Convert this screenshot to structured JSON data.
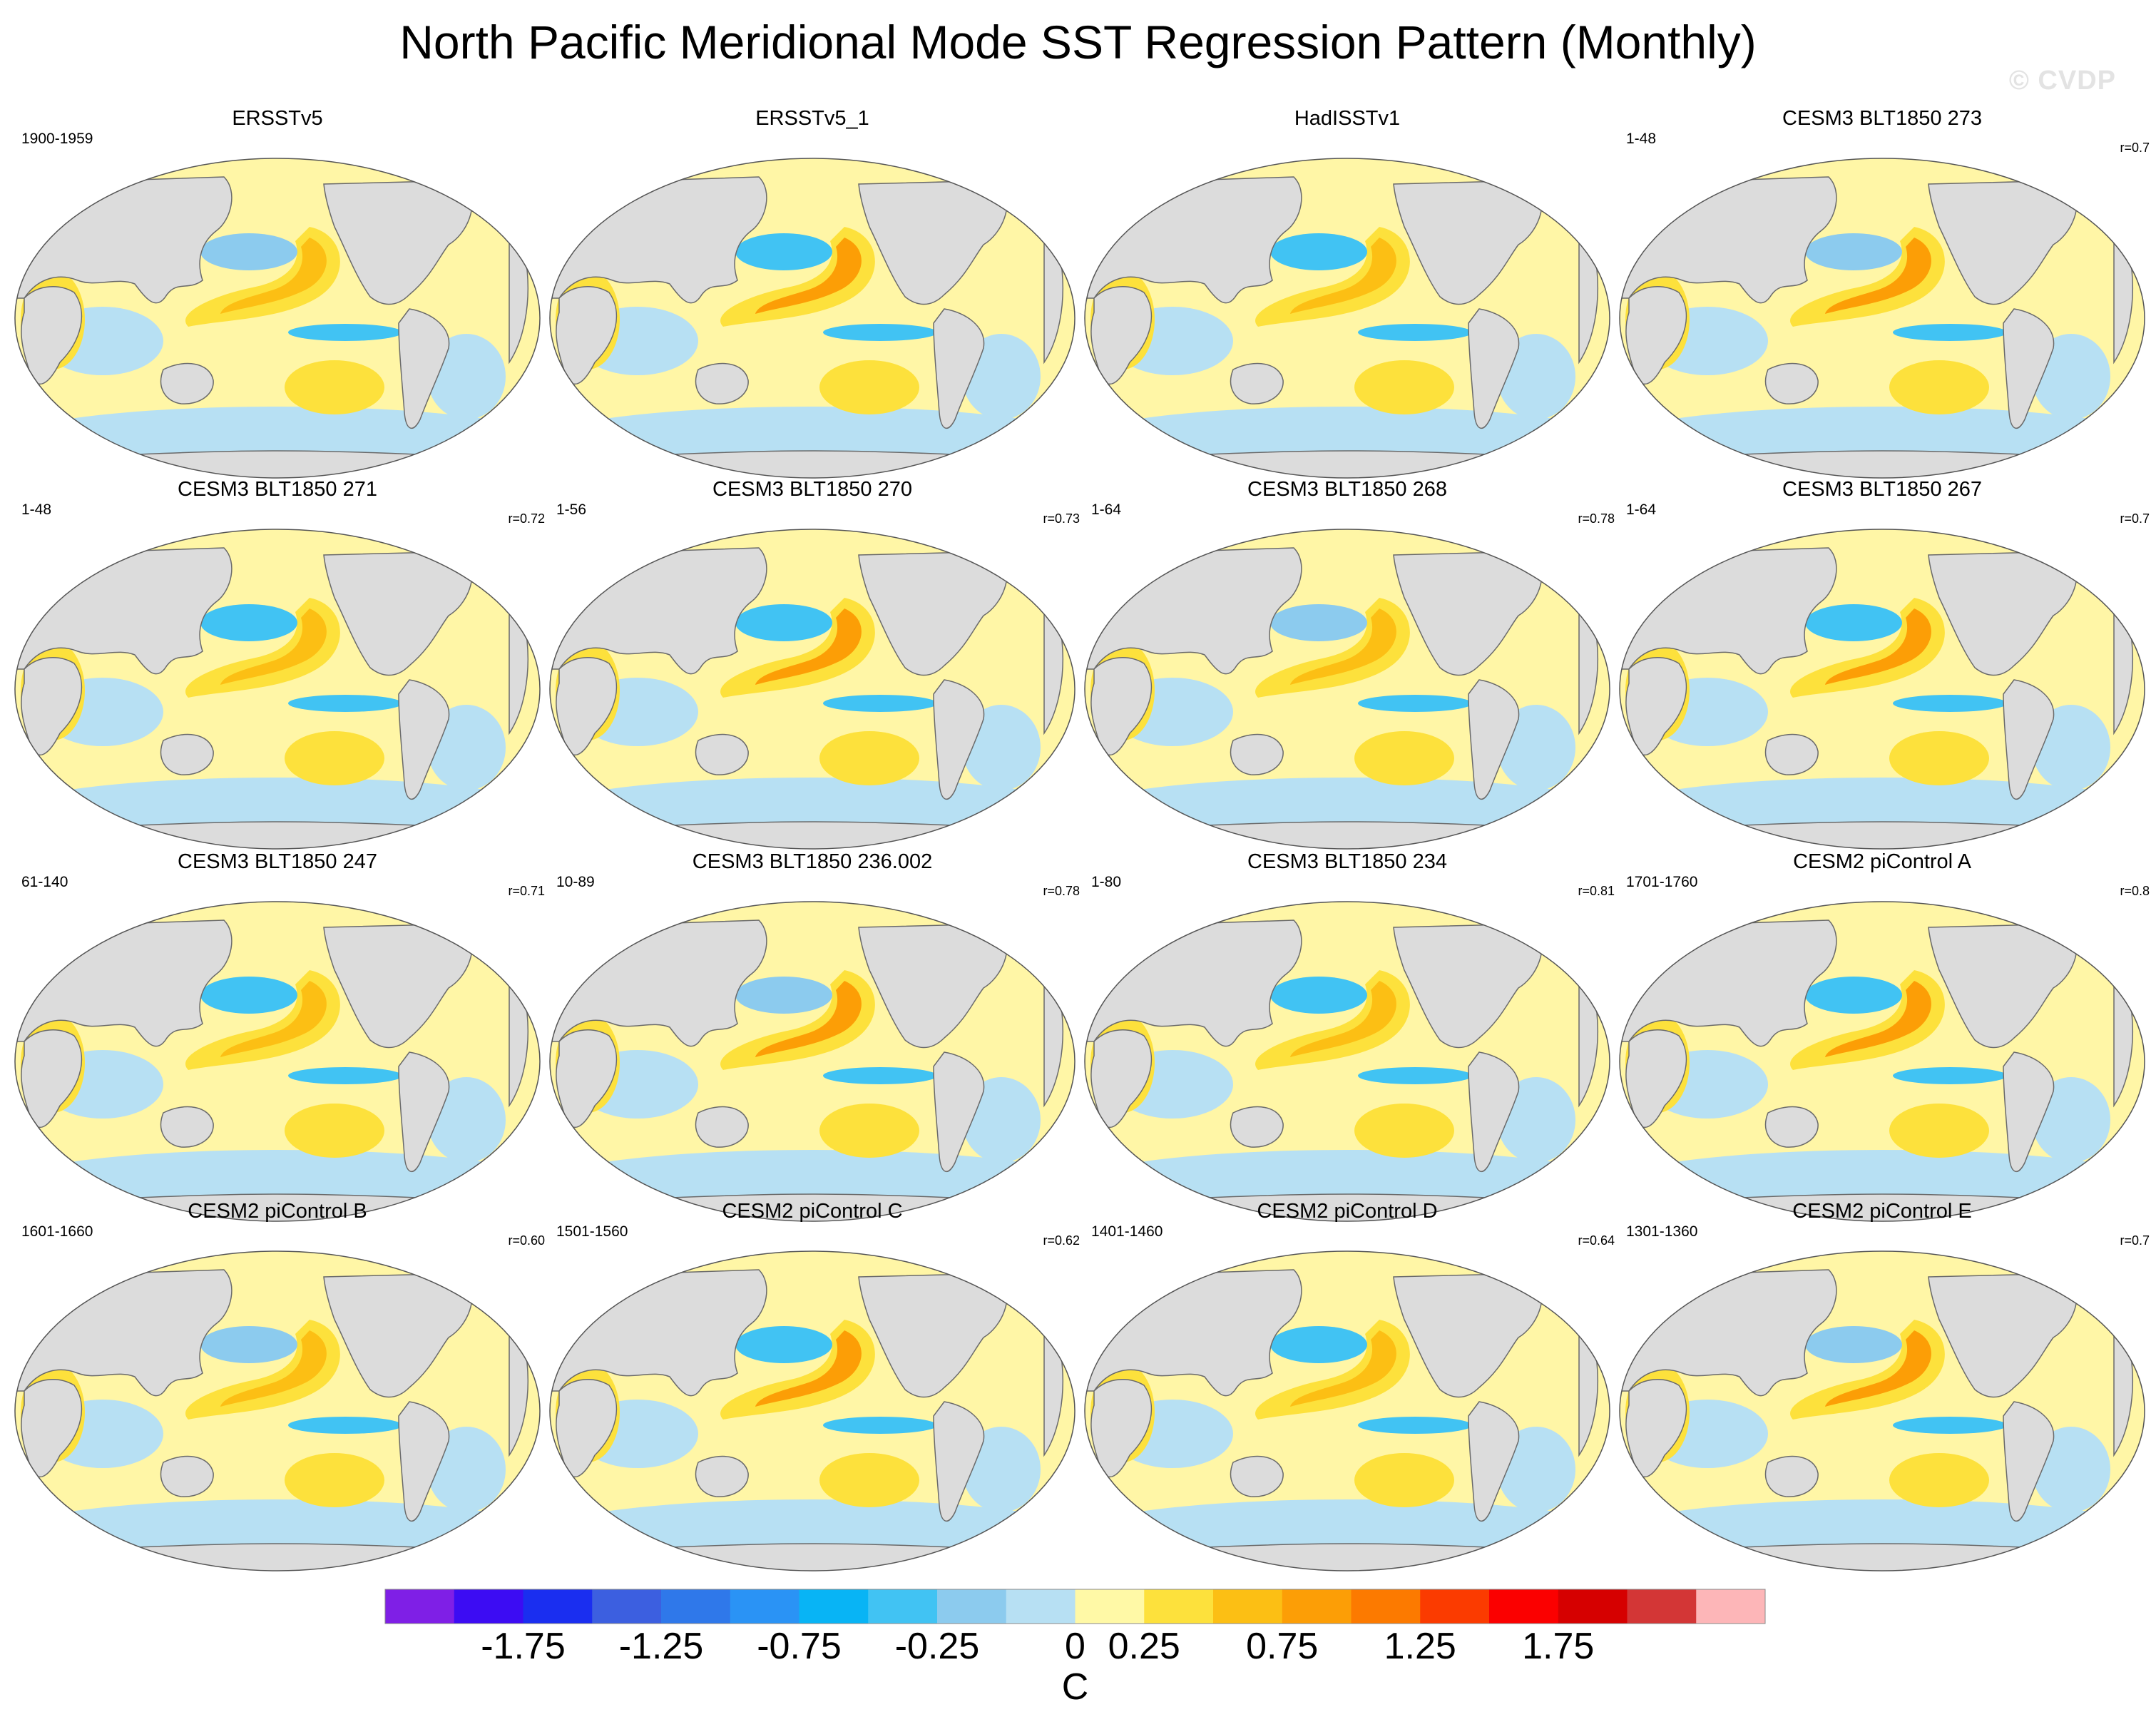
{
  "title": "North Pacific Meridional Mode SST Regression Pattern (Monthly)",
  "watermark": "© CVDP",
  "panels": [
    {
      "title": "ERSSTv5",
      "period": "1900-1959",
      "corr": ""
    },
    {
      "title": "ERSSTv5_1",
      "period": "",
      "corr": ""
    },
    {
      "title": "HadISSTv1",
      "period": "",
      "corr": ""
    },
    {
      "title": "CESM3 BLT1850 273",
      "period": "1-48",
      "corr": "r=0.7"
    },
    {
      "title": "CESM3 BLT1850 271",
      "period": "1-48",
      "corr": "r=0.72"
    },
    {
      "title": "CESM3 BLT1850 270",
      "period": "1-56",
      "corr": "r=0.73"
    },
    {
      "title": "CESM3 BLT1850 268",
      "period": "1-64",
      "corr": "r=0.78"
    },
    {
      "title": "CESM3 BLT1850 267",
      "period": "1-64",
      "corr": "r=0.7"
    },
    {
      "title": "CESM3 BLT1850 247",
      "period": "61-140",
      "corr": "r=0.71"
    },
    {
      "title": "CESM3 BLT1850 236.002",
      "period": "10-89",
      "corr": "r=0.78"
    },
    {
      "title": "CESM3 BLT1850 234",
      "period": "1-80",
      "corr": "r=0.81"
    },
    {
      "title": "CESM2 piControl A",
      "period": "1701-1760",
      "corr": "r=0.8"
    },
    {
      "title": "CESM2 piControl B",
      "period": "1601-1660",
      "corr": "r=0.60"
    },
    {
      "title": "CESM2 piControl C",
      "period": "1501-1560",
      "corr": "r=0.62"
    },
    {
      "title": "CESM2 piControl D",
      "period": "1401-1460",
      "corr": "r=0.64"
    },
    {
      "title": "CESM2 piControl E",
      "period": "1301-1360",
      "corr": "r=0.7"
    }
  ],
  "colorbar": {
    "unit": "C",
    "colors": [
      "#7f1fe6",
      "#3c0cf3",
      "#1a2ef0",
      "#3c5fe0",
      "#2f78ea",
      "#2a93f5",
      "#08b4f5",
      "#41c3f3",
      "#8ccbee",
      "#b7e0f3",
      "#fff9a6",
      "#fde13c",
      "#fcbf14",
      "#fc9e06",
      "#fc7a00",
      "#fb3b00",
      "#fb0000",
      "#d60000",
      "#d33636",
      "#fdb6b8"
    ],
    "tick_labels": [
      "-1.75",
      "-1.25",
      "-0.75",
      "-0.25",
      "0",
      "0.25",
      "0.75",
      "1.25",
      "1.75"
    ]
  },
  "map_colors": {
    "land": "#dcdcdc",
    "coast": "#6a6a6a",
    "neutral_ocean": "#fff6a6"
  }
}
